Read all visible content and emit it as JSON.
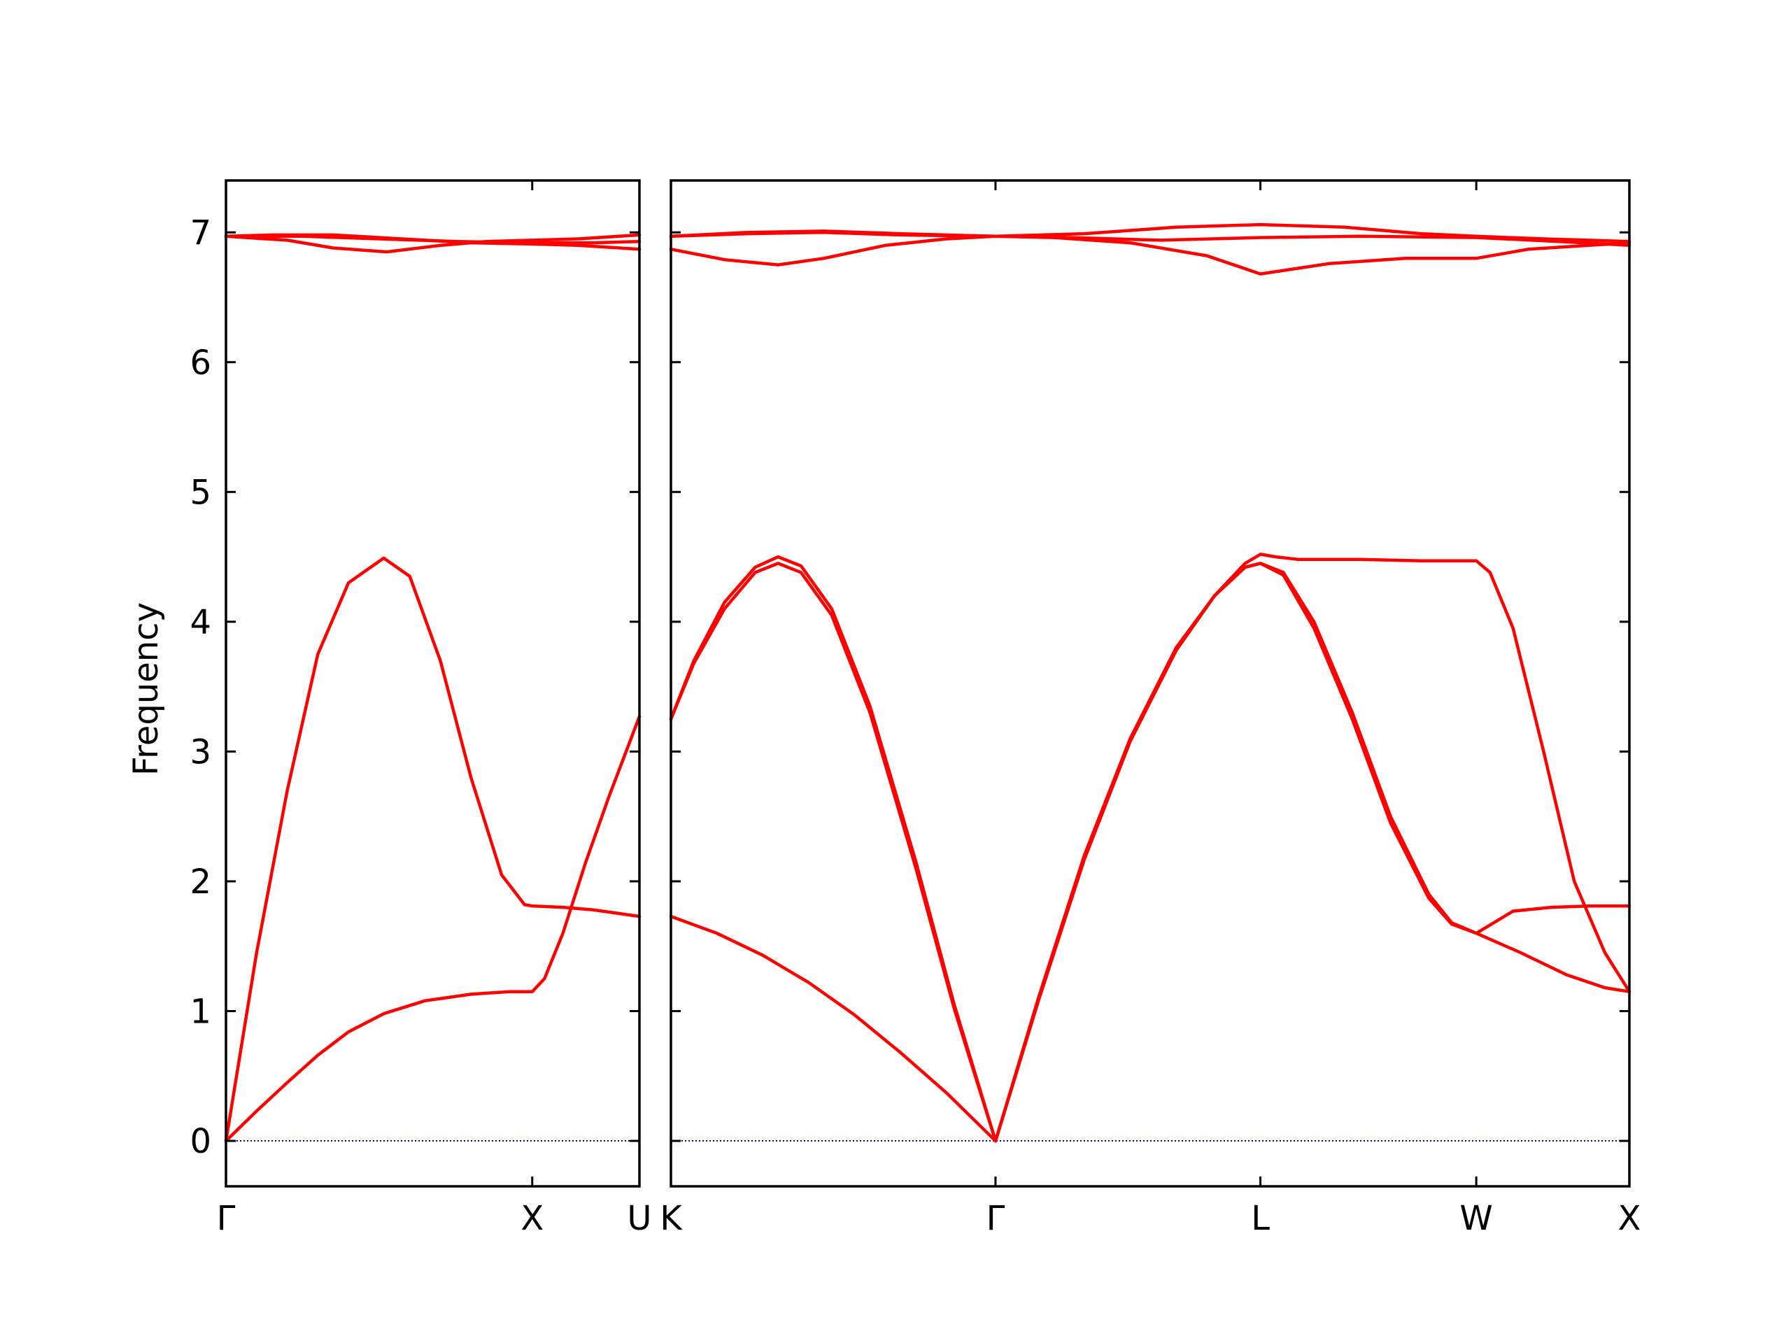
{
  "chart_data": {
    "type": "line",
    "ylabel": "Frequency",
    "ylim": [
      -0.35,
      7.4
    ],
    "yticks": [
      0,
      1,
      2,
      3,
      4,
      5,
      6,
      7
    ],
    "grid": false,
    "legend": "none",
    "band_color": "#ff0000",
    "zero_line_color": "#00008b",
    "panels": [
      {
        "xlim": [
          0,
          2.7
        ],
        "ticks": [
          {
            "x": 0,
            "label": "Γ"
          },
          {
            "x": 2.0,
            "label": "X"
          },
          {
            "x": 2.7,
            "label": "U"
          }
        ],
        "series": [
          {
            "points": [
              [
                0,
                0
              ],
              [
                0.2,
                1.45
              ],
              [
                0.4,
                2.7
              ],
              [
                0.6,
                3.75
              ],
              [
                0.8,
                4.3
              ],
              [
                1.03,
                4.49
              ],
              [
                1.2,
                4.35
              ],
              [
                1.4,
                3.7
              ],
              [
                1.6,
                2.8
              ],
              [
                1.8,
                2.05
              ],
              [
                1.95,
                1.82
              ],
              [
                2.0,
                1.81
              ],
              [
                2.2,
                1.8
              ],
              [
                2.4,
                1.78
              ],
              [
                2.7,
                1.73
              ]
            ]
          },
          {
            "points": [
              [
                0,
                0
              ],
              [
                0.2,
                0.23
              ],
              [
                0.4,
                0.45
              ],
              [
                0.6,
                0.66
              ],
              [
                0.8,
                0.84
              ],
              [
                1.03,
                0.98
              ],
              [
                1.3,
                1.08
              ],
              [
                1.6,
                1.13
              ],
              [
                1.85,
                1.15
              ],
              [
                2.0,
                1.15
              ],
              [
                2.08,
                1.25
              ],
              [
                2.2,
                1.6
              ],
              [
                2.35,
                2.15
              ],
              [
                2.5,
                2.65
              ],
              [
                2.7,
                3.27
              ]
            ]
          },
          {
            "points": [
              [
                0,
                6.97
              ],
              [
                0.3,
                6.98
              ],
              [
                0.7,
                6.98
              ],
              [
                1.0,
                6.96
              ],
              [
                1.3,
                6.94
              ],
              [
                1.6,
                6.92
              ],
              [
                2.0,
                6.91
              ],
              [
                2.3,
                6.9
              ],
              [
                2.7,
                6.87
              ]
            ]
          },
          {
            "points": [
              [
                0,
                6.97
              ],
              [
                0.4,
                6.94
              ],
              [
                0.7,
                6.88
              ],
              [
                1.05,
                6.85
              ],
              [
                1.4,
                6.9
              ],
              [
                1.7,
                6.93
              ],
              [
                2.0,
                6.94
              ],
              [
                2.3,
                6.95
              ],
              [
                2.7,
                6.98
              ]
            ]
          },
          {
            "points": [
              [
                0,
                6.97
              ],
              [
                0.5,
                6.97
              ],
              [
                1.0,
                6.95
              ],
              [
                1.5,
                6.93
              ],
              [
                2.0,
                6.92
              ],
              [
                2.4,
                6.92
              ],
              [
                2.7,
                6.93
              ]
            ]
          }
        ]
      },
      {
        "xlim": [
          0,
          6.26
        ],
        "ticks": [
          {
            "x": 0,
            "label": "K"
          },
          {
            "x": 2.12,
            "label": "Γ"
          },
          {
            "x": 3.85,
            "label": "L"
          },
          {
            "x": 5.26,
            "label": "W"
          },
          {
            "x": 6.26,
            "label": "X"
          }
        ],
        "series": [
          {
            "points": [
              [
                0,
                3.25
              ],
              [
                0.15,
                3.7
              ],
              [
                0.35,
                4.15
              ],
              [
                0.55,
                4.42
              ],
              [
                0.7,
                4.5
              ],
              [
                0.85,
                4.43
              ],
              [
                1.05,
                4.1
              ],
              [
                1.3,
                3.35
              ],
              [
                1.6,
                2.15
              ],
              [
                1.85,
                1.05
              ],
              [
                2.12,
                0
              ]
            ]
          },
          {
            "points": [
              [
                0,
                3.25
              ],
              [
                0.15,
                3.68
              ],
              [
                0.35,
                4.1
              ],
              [
                0.55,
                4.38
              ],
              [
                0.7,
                4.45
              ],
              [
                0.85,
                4.38
              ],
              [
                1.05,
                4.05
              ],
              [
                1.3,
                3.3
              ],
              [
                1.6,
                2.1
              ],
              [
                1.85,
                1.02
              ],
              [
                2.12,
                0
              ]
            ]
          },
          {
            "points": [
              [
                0,
                1.73
              ],
              [
                0.3,
                1.6
              ],
              [
                0.6,
                1.43
              ],
              [
                0.9,
                1.22
              ],
              [
                1.2,
                0.97
              ],
              [
                1.5,
                0.68
              ],
              [
                1.8,
                0.37
              ],
              [
                2.12,
                0
              ]
            ]
          },
          {
            "points": [
              [
                2.12,
                0
              ],
              [
                2.4,
                1.1
              ],
              [
                2.7,
                2.2
              ],
              [
                3.0,
                3.1
              ],
              [
                3.3,
                3.8
              ],
              [
                3.55,
                4.2
              ],
              [
                3.75,
                4.45
              ],
              [
                3.85,
                4.52
              ],
              [
                3.95,
                4.5
              ],
              [
                4.1,
                4.48
              ],
              [
                4.5,
                4.48
              ],
              [
                4.9,
                4.47
              ],
              [
                5.26,
                4.47
              ],
              [
                5.35,
                4.38
              ],
              [
                5.5,
                3.95
              ],
              [
                5.7,
                3.0
              ],
              [
                5.9,
                2.0
              ],
              [
                6.1,
                1.45
              ],
              [
                6.26,
                1.15
              ]
            ]
          },
          {
            "points": [
              [
                2.12,
                0
              ],
              [
                2.4,
                1.08
              ],
              [
                2.7,
                2.17
              ],
              [
                3.0,
                3.08
              ],
              [
                3.3,
                3.78
              ],
              [
                3.55,
                4.2
              ],
              [
                3.75,
                4.42
              ],
              [
                3.85,
                4.45
              ],
              [
                4.0,
                4.38
              ],
              [
                4.2,
                4.0
              ],
              [
                4.45,
                3.3
              ],
              [
                4.7,
                2.5
              ],
              [
                4.95,
                1.9
              ],
              [
                5.1,
                1.68
              ],
              [
                5.26,
                1.6
              ],
              [
                5.5,
                1.77
              ],
              [
                5.75,
                1.8
              ],
              [
                6.0,
                1.81
              ],
              [
                6.26,
                1.81
              ]
            ]
          },
          {
            "points": [
              [
                2.12,
                0
              ],
              [
                2.4,
                1.08
              ],
              [
                2.7,
                2.17
              ],
              [
                3.0,
                3.08
              ],
              [
                3.3,
                3.78
              ],
              [
                3.55,
                4.2
              ],
              [
                3.75,
                4.42
              ],
              [
                3.85,
                4.45
              ],
              [
                4.0,
                4.36
              ],
              [
                4.2,
                3.95
              ],
              [
                4.45,
                3.25
              ],
              [
                4.7,
                2.45
              ],
              [
                4.95,
                1.87
              ],
              [
                5.1,
                1.67
              ],
              [
                5.26,
                1.6
              ],
              [
                5.55,
                1.45
              ],
              [
                5.85,
                1.28
              ],
              [
                6.1,
                1.18
              ],
              [
                6.26,
                1.15
              ]
            ]
          },
          {
            "points": [
              [
                0,
                6.97
              ],
              [
                0.5,
                7.0
              ],
              [
                1.0,
                7.01
              ],
              [
                1.5,
                6.99
              ],
              [
                2.12,
                6.97
              ],
              [
                2.7,
                6.99
              ],
              [
                3.3,
                7.04
              ],
              [
                3.85,
                7.06
              ],
              [
                4.4,
                7.04
              ],
              [
                4.9,
                6.99
              ],
              [
                5.26,
                6.97
              ],
              [
                5.7,
                6.95
              ],
              [
                6.26,
                6.93
              ]
            ]
          },
          {
            "points": [
              [
                0,
                6.97
              ],
              [
                0.5,
                6.99
              ],
              [
                1.0,
                7.0
              ],
              [
                1.5,
                6.98
              ],
              [
                2.12,
                6.97
              ],
              [
                2.5,
                6.96
              ],
              [
                3.0,
                6.92
              ],
              [
                3.5,
                6.82
              ],
              [
                3.85,
                6.68
              ],
              [
                4.3,
                6.76
              ],
              [
                4.8,
                6.8
              ],
              [
                5.26,
                6.8
              ],
              [
                5.6,
                6.87
              ],
              [
                6.26,
                6.92
              ]
            ]
          },
          {
            "points": [
              [
                0,
                6.87
              ],
              [
                0.35,
                6.79
              ],
              [
                0.7,
                6.75
              ],
              [
                1.0,
                6.8
              ],
              [
                1.4,
                6.9
              ],
              [
                1.8,
                6.95
              ],
              [
                2.12,
                6.97
              ],
              [
                2.6,
                6.96
              ],
              [
                3.2,
                6.94
              ],
              [
                3.85,
                6.96
              ],
              [
                4.5,
                6.97
              ],
              [
                5.26,
                6.96
              ],
              [
                5.8,
                6.93
              ],
              [
                6.26,
                6.9
              ]
            ]
          }
        ]
      }
    ]
  }
}
